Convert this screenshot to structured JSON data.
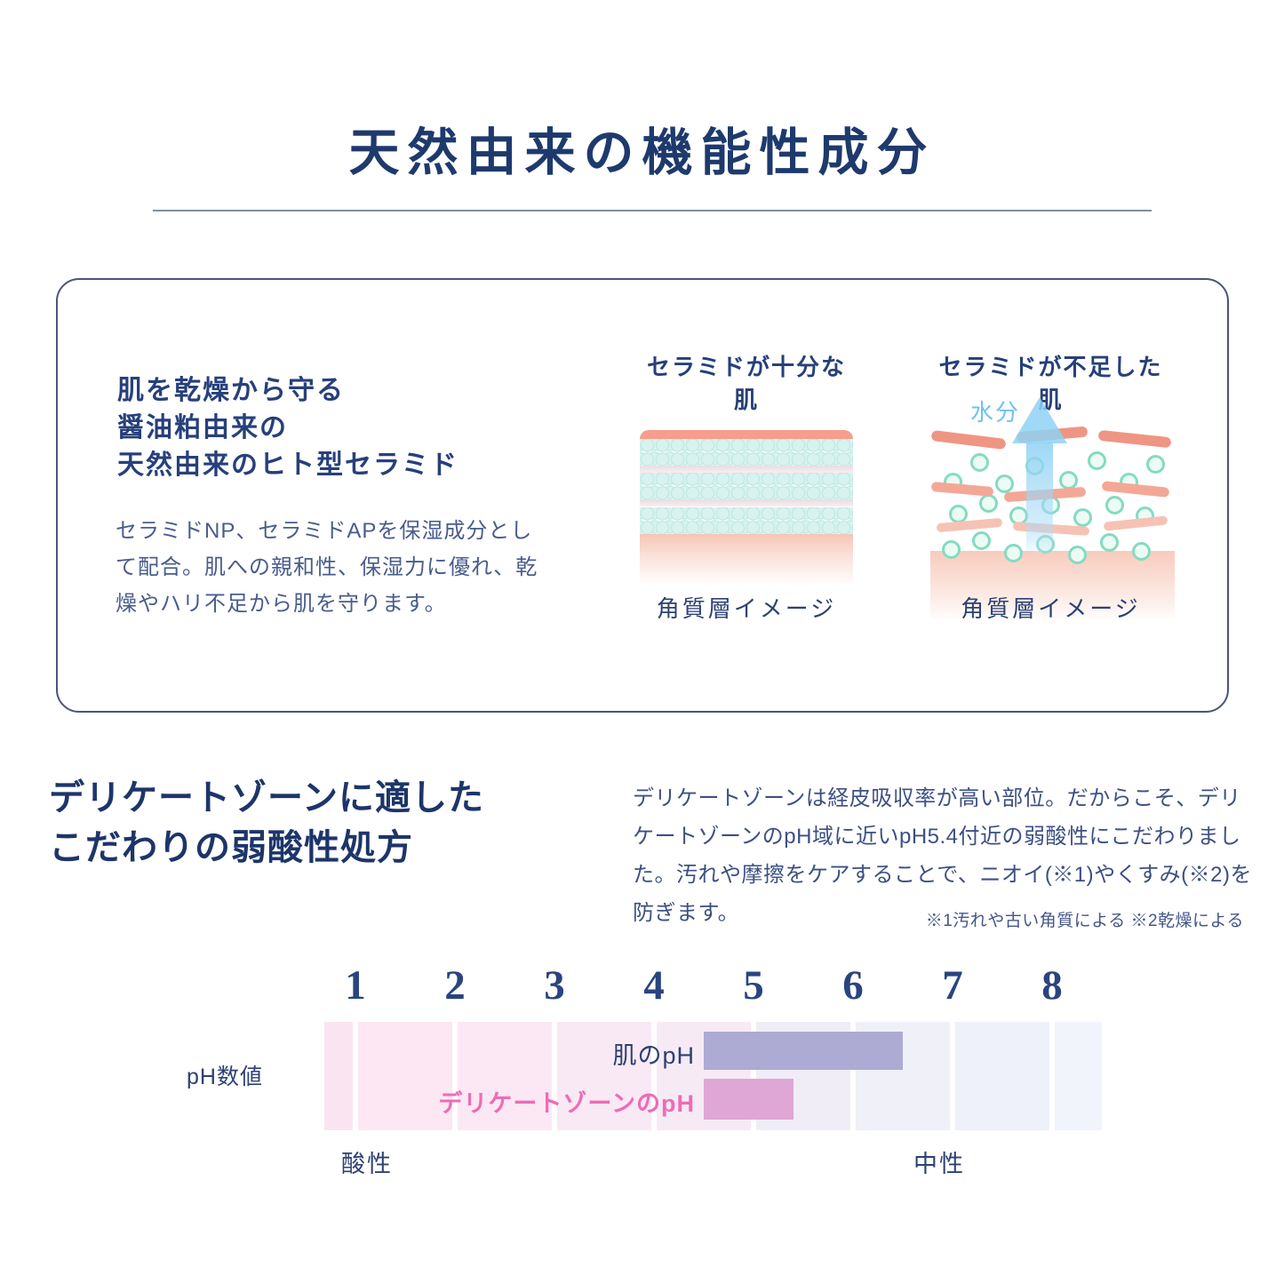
{
  "colors": {
    "title_navy": "#1e3a6d",
    "headline_navy": "#27407b",
    "body_blue": "#4a5c8c",
    "divider_gray": "#7f8fa0",
    "card_border": "#4a5479",
    "skin_surface_salmon": "#f79d8b",
    "bubble_teal": "#b9e6df",
    "mint_dot": "#84dbc1",
    "arrow_blue": "#8ed2f4",
    "moisture_blue": "#6fc3ef",
    "skin_ph_bar": "#adaad4",
    "delicate_ph_bar": "#dea7d5",
    "delicate_label_pink": "#ee6cb4"
  },
  "header": {
    "title": "天然由来の機能性成分"
  },
  "ceramide_card": {
    "headline_lines": [
      "肌を乾燥から守る",
      "醤油粕由来の",
      "天然由来のヒト型セラミド"
    ],
    "body_lines": [
      "セラミドNP、セラミドAPを保湿成分とし",
      "て配合。肌への親和性、保湿力に優れ、乾",
      "燥やハリ不足から肌を守ります。"
    ],
    "figures": [
      {
        "title": "セラミドが十分な肌",
        "caption": "角質層イメージ"
      },
      {
        "title": "セラミドが不足した肌",
        "caption": "角質層イメージ",
        "moisture_label": "水分"
      }
    ]
  },
  "ph_section": {
    "heading_lines": [
      "デリケートゾーンに適した",
      "こだわりの弱酸性処方"
    ],
    "body_lines": [
      "デリケートゾーンは経皮吸収率が高い部位。だからこそ、デリ",
      "ケートゾーンのpH域に近いpH5.4付近の弱酸性にこだわりまし",
      "た。汚れや摩擦をケアすることで、ニオイ(※1)やくすみ(※2)を",
      "防ぎます。"
    ],
    "footnote": "※1汚れや古い角質による ※2乾燥による"
  },
  "chart_data": {
    "type": "bar",
    "orientation": "horizontal",
    "axis_label": "pH数値",
    "ticks": [
      1,
      2,
      3,
      4,
      5,
      6,
      7,
      8
    ],
    "x_range_displayed": [
      0.7,
      8.5
    ],
    "grid": false,
    "legend": "inline-labels",
    "tick_color": "#2a4480",
    "left_label": "酸性",
    "right_label": "中性",
    "series": [
      {
        "name": "肌のpH",
        "start": 4.5,
        "end": 6.5,
        "color": "#adaad4",
        "label_color": "#2d4173",
        "label_bold": false
      },
      {
        "name": "デリケートゾーンのpH",
        "start": 4.5,
        "end": 5.4,
        "color": "#dea7d5",
        "label_color": "#ee6cb4",
        "label_bold": true
      }
    ],
    "scale_colors": [
      "#fbe4f1",
      "#fce7f3",
      "#fbe8f4",
      "#f9e9f4",
      "#f6eaf5",
      "#f1edf7",
      "#eff0f8",
      "#eef1f9",
      "#f1f4fb"
    ]
  }
}
